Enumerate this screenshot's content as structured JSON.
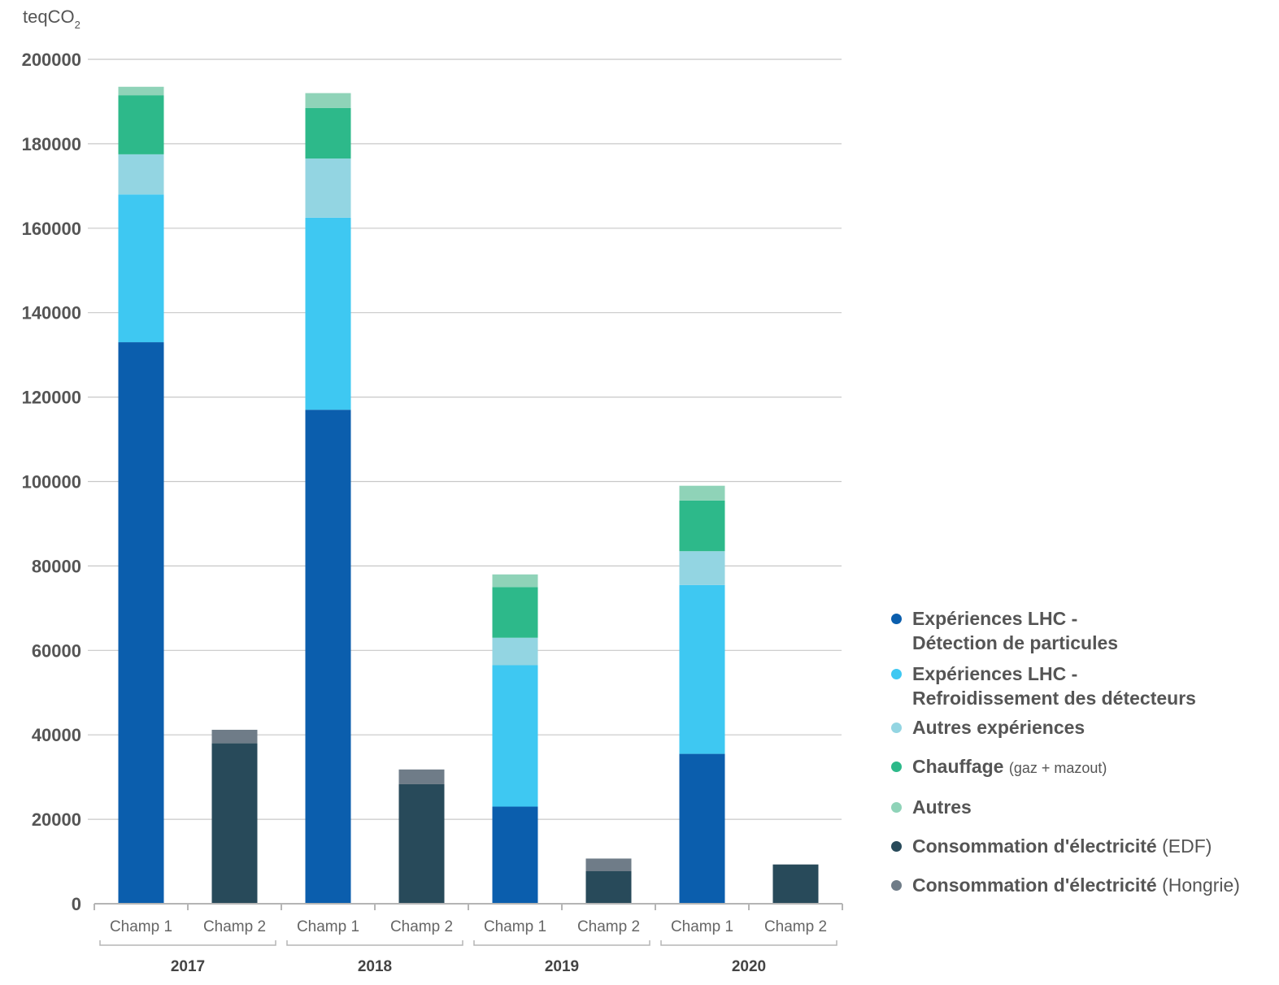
{
  "chart_data": {
    "type": "bar",
    "stacked": true,
    "ylabel": "teqCO",
    "ylabel_subscript": "2",
    "ylim": [
      0,
      200000
    ],
    "yticks": [
      "0",
      "20000",
      "40000",
      "60000",
      "80000",
      "100000",
      "120000",
      "140000",
      "160000",
      "180000",
      "200000"
    ],
    "grid": true,
    "legend_position": "right",
    "groups": [
      "2017",
      "2018",
      "2019",
      "2020"
    ],
    "categories": [
      "Champ 1",
      "Champ 2",
      "Champ 1",
      "Champ 2",
      "Champ 1",
      "Champ 2",
      "Champ 1",
      "Champ 2"
    ],
    "series": [
      {
        "name": "Expériences LHC -\nDétection de particules",
        "color": "#0b5ead",
        "values": [
          133000,
          0,
          117000,
          0,
          23000,
          0,
          35500,
          0
        ]
      },
      {
        "name": "Expériences LHC -\nRefroidissement des détecteurs",
        "color": "#3ec8f2",
        "values": [
          35000,
          0,
          45500,
          0,
          33500,
          0,
          40000,
          0
        ]
      },
      {
        "name": "Autres expériences",
        "color": "#93d5e2",
        "values": [
          9500,
          0,
          14000,
          0,
          6500,
          0,
          8000,
          0
        ]
      },
      {
        "name": "Chauffage",
        "detail": "(gaz + mazout)",
        "color": "#2db98a",
        "values": [
          14000,
          0,
          12000,
          0,
          12000,
          0,
          12000,
          0
        ]
      },
      {
        "name": "Autres",
        "color": "#8fd3b8",
        "values": [
          2000,
          0,
          3500,
          0,
          3000,
          0,
          3500,
          0
        ]
      },
      {
        "name": "Consommation d'électricité",
        "detail": "(EDF)",
        "color": "#284a5a",
        "values": [
          0,
          38000,
          0,
          28300,
          0,
          7700,
          0,
          9300
        ]
      },
      {
        "name": "Consommation d'électricité",
        "detail": "(Hongrie)",
        "color": "#6f7c88",
        "values": [
          0,
          3200,
          0,
          3500,
          0,
          3000,
          0,
          0
        ]
      }
    ]
  }
}
